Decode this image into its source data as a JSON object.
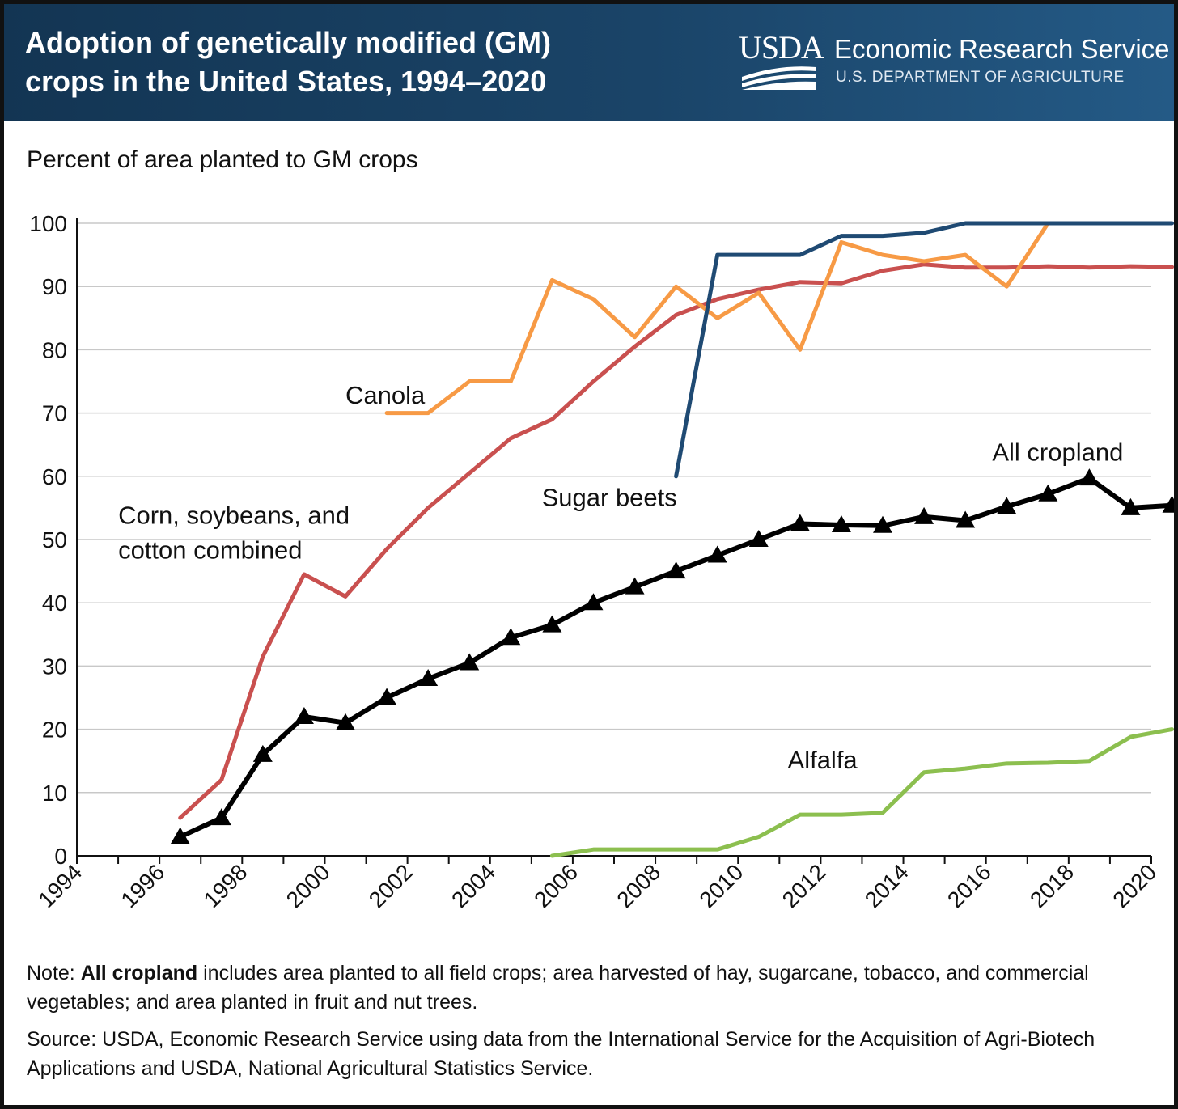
{
  "header": {
    "title_line1": "Adoption of genetically modified (GM)",
    "title_line2": "crops in the United States, 1994–2020",
    "logo_text": "USDA",
    "agency_name": "Economic Research Service",
    "department": "U.S. DEPARTMENT OF AGRICULTURE"
  },
  "footer": {
    "note_prefix": "Note: ",
    "note_bold": "All cropland",
    "note_text": " includes area planted to all field crops; area harvested of hay, sugarcane, tobacco, and commercial vegetables; and area planted in fruit and nut trees.",
    "source": "Source: USDA, Economic Research Service using data from the International Service for the Acquisition of Agri-Biotech Applications and USDA, National Agricultural Statistics Service."
  },
  "colors": {
    "header_bg": "#1a4468",
    "corn": "#c9504f",
    "canola": "#f79a45",
    "sugar_beets": "#1f4a73",
    "all_cropland": "#000000",
    "alfalfa": "#8cbf4f",
    "grid": "#c8c8c8"
  },
  "chart_data": {
    "type": "line",
    "ylabel": "Percent of area planted to GM crops",
    "ylim": [
      0,
      100
    ],
    "yticks": [
      0,
      10,
      20,
      30,
      40,
      50,
      60,
      70,
      80,
      90,
      100
    ],
    "xlim": [
      1994,
      2020
    ],
    "xticks": [
      "1994",
      "1996",
      "1998",
      "2000",
      "2002",
      "2004",
      "2006",
      "2008",
      "2010",
      "2012",
      "2014",
      "2016",
      "2018",
      "2020"
    ],
    "grid": true,
    "series": [
      {
        "name": "Corn, soybeans, and cotton combined",
        "color_key": "corn",
        "marker": "none",
        "x": [
          1996,
          1997,
          1998,
          1999,
          2000,
          2001,
          2002,
          2003,
          2004,
          2005,
          2006,
          2007,
          2008,
          2009,
          2010,
          2011,
          2012,
          2013,
          2014,
          2015,
          2016,
          2017,
          2018,
          2019,
          2020
        ],
        "y": [
          6,
          12,
          31.5,
          44.5,
          41,
          48.5,
          55,
          60.5,
          66,
          69,
          75,
          80.5,
          85.5,
          88,
          89.5,
          90.7,
          90.5,
          92.5,
          93.5,
          93,
          93,
          93.2,
          93,
          93.2,
          93.1
        ]
      },
      {
        "name": "Canola",
        "color_key": "canola",
        "marker": "none",
        "x": [
          2001,
          2002,
          2003,
          2004,
          2005,
          2006,
          2007,
          2008,
          2009,
          2010,
          2011,
          2012,
          2013,
          2014,
          2015,
          2016,
          2017
        ],
        "y": [
          70,
          70,
          75,
          75,
          91,
          88,
          82,
          90,
          85,
          89,
          80,
          97,
          95,
          94,
          95,
          90,
          100
        ]
      },
      {
        "name": "Sugar beets",
        "color_key": "sugar_beets",
        "marker": "none",
        "x": [
          2008,
          2009,
          2010,
          2011,
          2012,
          2013,
          2014,
          2015,
          2016,
          2017,
          2018,
          2019,
          2020
        ],
        "y": [
          60,
          95,
          95,
          95,
          98,
          98,
          98.5,
          100,
          100,
          100,
          100,
          100,
          100
        ]
      },
      {
        "name": "All cropland",
        "color_key": "all_cropland",
        "marker": "triangle",
        "x": [
          1996,
          1997,
          1998,
          1999,
          2000,
          2001,
          2002,
          2003,
          2004,
          2005,
          2006,
          2007,
          2008,
          2009,
          2010,
          2011,
          2012,
          2013,
          2014,
          2015,
          2016,
          2017,
          2018,
          2019,
          2020
        ],
        "y": [
          3,
          6,
          16,
          22,
          21,
          25,
          28,
          30.5,
          34.5,
          36.5,
          40,
          42.5,
          45,
          47.5,
          50,
          52.5,
          52.3,
          52.2,
          53.6,
          53,
          55.2,
          57.2,
          59.7,
          55,
          55.4
        ]
      },
      {
        "name": "Alfalfa",
        "color_key": "alfalfa",
        "marker": "none",
        "x": [
          2005,
          2006,
          2007,
          2008,
          2009,
          2010,
          2011,
          2012,
          2013,
          2014,
          2015,
          2016,
          2017,
          2018,
          2019,
          2020
        ],
        "y": [
          0,
          1,
          1,
          1,
          1,
          3,
          6.5,
          6.5,
          6.8,
          13.2,
          13.8,
          14.6,
          14.7,
          15,
          18.8,
          20
        ]
      }
    ],
    "annotations": [
      {
        "text": "Canola",
        "series": "Canola"
      },
      {
        "text": "Sugar beets",
        "series": "Sugar beets"
      },
      {
        "text": "All cropland",
        "series": "All cropland"
      },
      {
        "text_line1": "Corn, soybeans, and",
        "text_line2": "cotton combined",
        "series": "Corn, soybeans, and cotton combined"
      },
      {
        "text": "Alfalfa",
        "series": "Alfalfa"
      }
    ]
  }
}
